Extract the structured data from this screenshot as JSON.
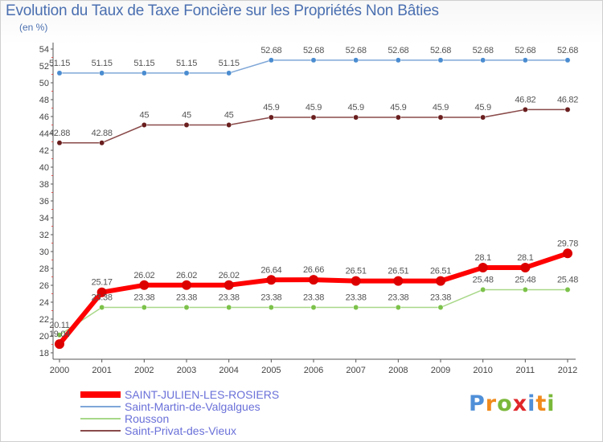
{
  "title": "Evolution du Taux de Taxe Foncière sur les Propriétés Non Bâties",
  "subtitle": "(en %)",
  "logo": {
    "text": "Proxiti",
    "letters": [
      {
        "ch": "P",
        "color": "#4f8fd8"
      },
      {
        "ch": "r",
        "color": "#f08a1c"
      },
      {
        "ch": "o",
        "color": "#7ab83a"
      },
      {
        "ch": "x",
        "color": "#e0262a"
      },
      {
        "ch": "i",
        "color": "#4f8fd8"
      },
      {
        "ch": "t",
        "color": "#f08a1c"
      },
      {
        "ch": "i",
        "color": "#7ab83a"
      }
    ]
  },
  "chart_data": {
    "type": "line",
    "title": "Evolution du Taux de Taxe Foncière sur les Propriétés Non Bâties",
    "ylabel": "(en %)",
    "xlabel": "",
    "ylim": [
      18,
      54
    ],
    "ytick_step": 2,
    "grid": false,
    "legend_position": "bottom-left",
    "x": [
      "2000",
      "2001",
      "2002",
      "2003",
      "2004",
      "2005",
      "2006",
      "2007",
      "2008",
      "2009",
      "2010",
      "2011",
      "2012"
    ],
    "series": [
      {
        "name": "SAINT-JULIEN-LES-ROSIERS",
        "color": "#ff0000",
        "marker_color": "#dd0000",
        "width": 6,
        "values": [
          19.04,
          25.17,
          26.02,
          26.02,
          26.02,
          26.64,
          26.66,
          26.51,
          26.51,
          26.51,
          28.1,
          28.1,
          29.78
        ],
        "labels": [
          "19.04",
          "25.17",
          "26.02",
          "26.02",
          "26.02",
          "26.64",
          "26.66",
          "26.51",
          "26.51",
          "26.51",
          "28.1",
          "28.1",
          "29.78"
        ]
      },
      {
        "name": "Saint-Martin-de-Valgalgues",
        "color": "#7fa7d8",
        "marker_color": "#4a8cd0",
        "width": 1.5,
        "values": [
          51.15,
          51.15,
          51.15,
          51.15,
          51.15,
          52.68,
          52.68,
          52.68,
          52.68,
          52.68,
          52.68,
          52.68,
          52.68
        ],
        "labels": [
          "51.15",
          "51.15",
          "51.15",
          "51.15",
          "51.15",
          "52.68",
          "52.68",
          "52.68",
          "52.68",
          "52.68",
          "52.68",
          "52.68",
          "52.68"
        ]
      },
      {
        "name": "Rousson",
        "color": "#a8d888",
        "marker_color": "#7cc24a",
        "width": 1.5,
        "values": [
          20.11,
          23.38,
          23.38,
          23.38,
          23.38,
          23.38,
          23.38,
          23.38,
          23.38,
          23.38,
          25.48,
          25.48,
          25.48
        ],
        "labels": [
          "20.11",
          "23.38",
          "23.38",
          "23.38",
          "23.38",
          "23.38",
          "23.38",
          "23.38",
          "23.38",
          "23.38",
          "25.48",
          "25.48",
          "25.48"
        ]
      },
      {
        "name": "Saint-Privat-des-Vieux",
        "color": "#8a4a4a",
        "marker_color": "#6a1e1e",
        "width": 1.5,
        "values": [
          42.88,
          42.88,
          45,
          45,
          45,
          45.9,
          45.9,
          45.9,
          45.9,
          45.9,
          45.9,
          46.82,
          46.82
        ],
        "labels": [
          "42.88",
          "42.88",
          "45",
          "45",
          "45",
          "45.9",
          "45.9",
          "45.9",
          "45.9",
          "45.9",
          "45.9",
          "46.82",
          "46.82"
        ]
      }
    ]
  }
}
